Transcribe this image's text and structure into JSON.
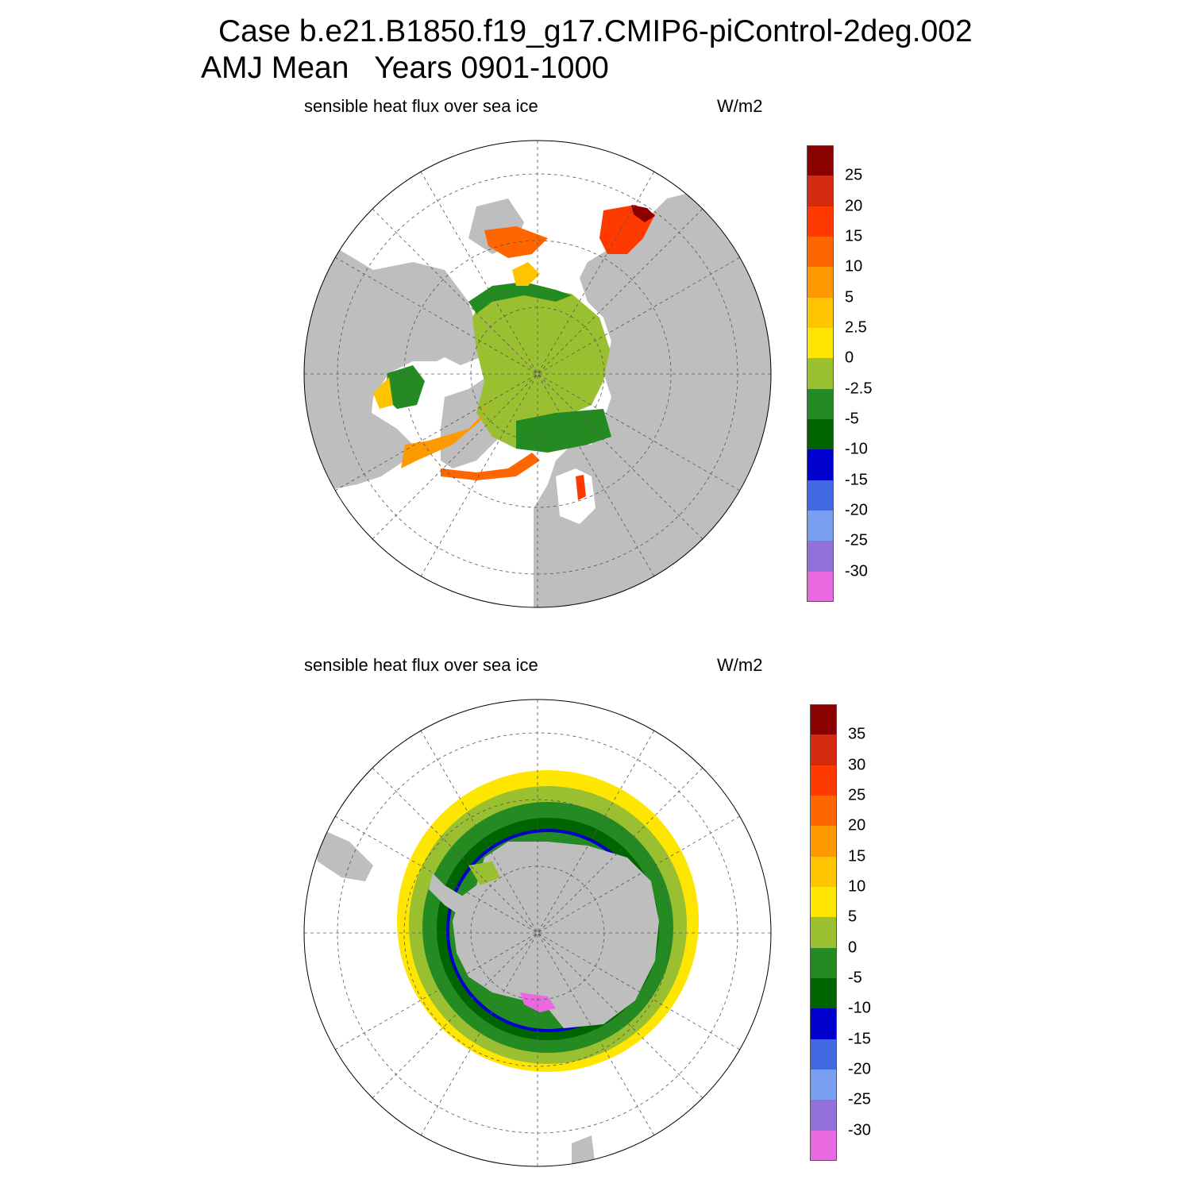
{
  "title": {
    "line1": "Case b.e21.B1850.f19_g17.CMIP6-piControl-2deg.002",
    "line2": "AMJ Mean   Years 0901-1000"
  },
  "panels": [
    {
      "id": "north",
      "label": "sensible heat flux over sea ice",
      "units": "W/m2",
      "hemisphere": "north",
      "colorbar": {
        "ticks": [
          "25",
          "20",
          "15",
          "10",
          "5",
          "2.5",
          "0",
          "-2.5",
          "-5",
          "-10",
          "-15",
          "-20",
          "-25",
          "-30"
        ],
        "colors": [
          "#8b0000",
          "#d42a10",
          "#ff3a00",
          "#ff6600",
          "#ff9900",
          "#ffc400",
          "#ffe600",
          "#9ac031",
          "#238b22",
          "#006400",
          "#0000cd",
          "#4169e1",
          "#7a9ef0",
          "#9370db",
          "#e96ae0"
        ]
      }
    },
    {
      "id": "south",
      "label": "sensible heat flux over sea ice",
      "units": "W/m2",
      "hemisphere": "south",
      "colorbar": {
        "ticks": [
          "35",
          "30",
          "25",
          "20",
          "15",
          "10",
          "5",
          "0",
          "-5",
          "-10",
          "-15",
          "-20",
          "-25",
          "-30"
        ],
        "colors": [
          "#8b0000",
          "#d42a10",
          "#ff3a00",
          "#ff6600",
          "#ff9900",
          "#ffc400",
          "#ffe600",
          "#9ac031",
          "#238b22",
          "#006400",
          "#0000cd",
          "#4169e1",
          "#7a9ef0",
          "#9370db",
          "#e96ae0"
        ]
      }
    }
  ],
  "colors": {
    "land": "#bebebe",
    "ocean": "#ffffff",
    "grid": "#555555"
  }
}
